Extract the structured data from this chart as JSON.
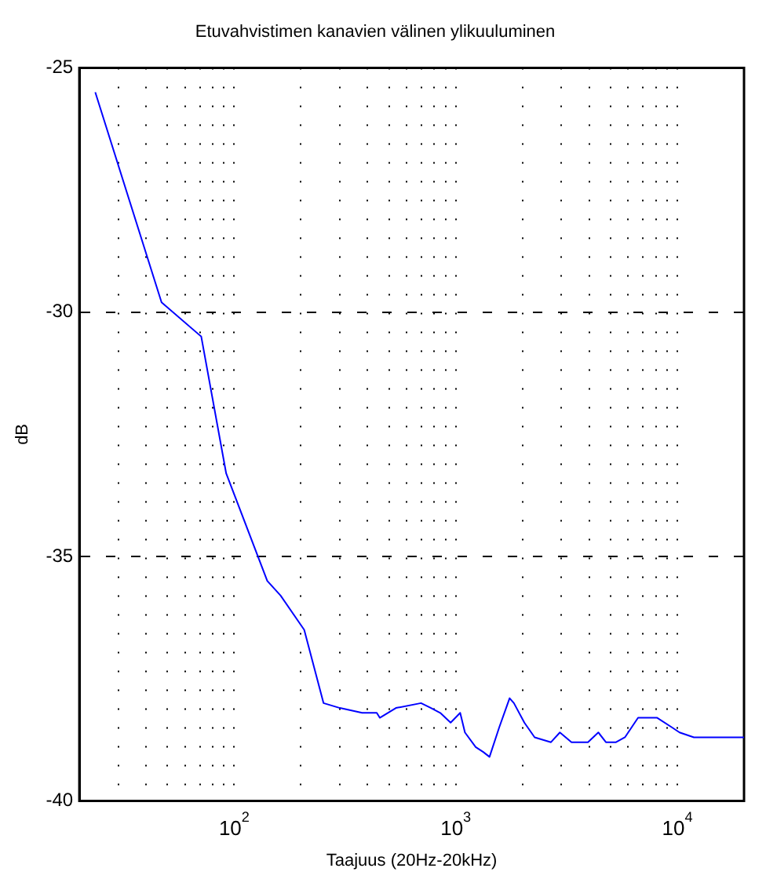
{
  "chart_data": {
    "type": "line",
    "title": "Etuvahvistimen kanavien välinen ylikuuluminen",
    "xlabel": "Taajuus (20Hz-20kHz)",
    "ylabel": "dB",
    "log": "x",
    "grid": true,
    "marker": "none",
    "line_style": "solid",
    "legend": false,
    "xlim": [
      20,
      20000
    ],
    "ylim": [
      -40,
      -25
    ],
    "yticks": [
      -40,
      -35,
      -30,
      -25
    ],
    "xticks": [
      {
        "value": 20,
        "label": null
      },
      {
        "value": 30,
        "label": null
      },
      {
        "value": 40,
        "label": null
      },
      {
        "value": 50,
        "label": null
      },
      {
        "value": 60,
        "label": null
      },
      {
        "value": 70,
        "label": null
      },
      {
        "value": 80,
        "label": null
      },
      {
        "value": 90,
        "label": null
      },
      {
        "value": 100,
        "label": "10$^{2}$"
      },
      {
        "value": 200,
        "label": null
      },
      {
        "value": 300,
        "label": null
      },
      {
        "value": 400,
        "label": null
      },
      {
        "value": 500,
        "label": null
      },
      {
        "value": 600,
        "label": null
      },
      {
        "value": 700,
        "label": null
      },
      {
        "value": 800,
        "label": null
      },
      {
        "value": 900,
        "label": null
      },
      {
        "value": 1000,
        "label": "10$^{3}$"
      },
      {
        "value": 2000,
        "label": null
      },
      {
        "value": 3000,
        "label": null
      },
      {
        "value": 4000,
        "label": null
      },
      {
        "value": 5000,
        "label": null
      },
      {
        "value": 6000,
        "label": null
      },
      {
        "value": 7000,
        "label": null
      },
      {
        "value": 8000,
        "label": null
      },
      {
        "value": 9000,
        "label": null
      },
      {
        "value": 10000,
        "label": "10$^{4}$"
      },
      {
        "value": 20000,
        "label": null
      }
    ],
    "x": [
      23.6,
      47,
      71,
      92,
      141,
      162,
      207,
      253,
      300,
      378,
      440,
      454,
      537,
      697,
      773,
      851,
      948,
      1047,
      1100,
      1230,
      1330,
      1420,
      1570,
      1750,
      1830,
      2040,
      2270,
      2690,
      2950,
      3330,
      3950,
      4400,
      4760,
      5290,
      5800,
      6650,
      7290,
      8110,
      9480,
      10230,
      11880,
      13800,
      17000,
      20000
    ],
    "series": [
      {
        "color": "#0000ff",
        "values": [
          -25.5,
          -29.8,
          -30.5,
          -33.3,
          -35.5,
          -35.8,
          -36.5,
          -38.0,
          -38.1,
          -38.2,
          -38.2,
          -38.3,
          -38.1,
          -38.0,
          -38.1,
          -38.2,
          -38.4,
          -38.2,
          -38.6,
          -38.9,
          -39.0,
          -39.1,
          -38.5,
          -37.9,
          -38.0,
          -38.4,
          -38.7,
          -38.8,
          -38.6,
          -38.8,
          -38.8,
          -38.6,
          -38.8,
          -38.8,
          -38.7,
          -38.3,
          -38.3,
          -38.3,
          -38.5,
          -38.6,
          -38.7,
          -38.7,
          -38.7,
          -38.7
        ]
      }
    ]
  }
}
